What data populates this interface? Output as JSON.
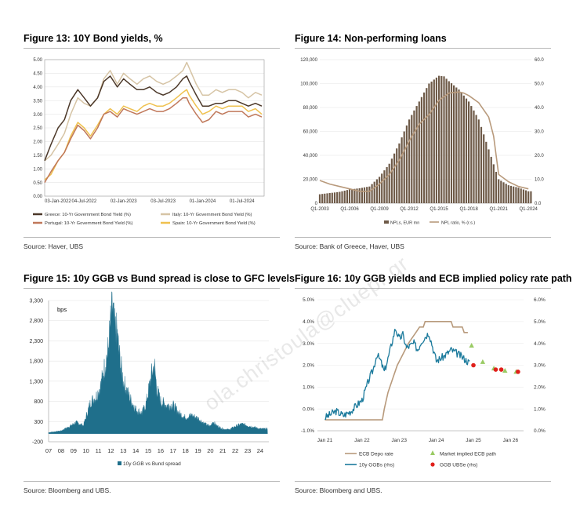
{
  "watermark": "ola.christoula@cluepr.gr",
  "colors": {
    "greece": "#4b3728",
    "italy": "#d6c4a5",
    "portugal": "#c0785a",
    "spain": "#efc14f",
    "npl_bar": "#6e5a48",
    "npl_line": "#b89a7c",
    "spread": "#1f6f8b",
    "ecb_depo": "#b89a7c",
    "ggb": "#1b7a9c",
    "market_implied": "#9acb64",
    "ubse": "#e0201b"
  },
  "chart_data": [
    {
      "id": "fig13",
      "type": "line",
      "title": "Figure 13: 10Y Bond yields, %",
      "source": "Source: Haver, UBS",
      "ylim": [
        0,
        5
      ],
      "grid": true,
      "legend_position": "bottom",
      "y_ticks": [
        "0.00",
        "0.50",
        "1.00",
        "1.50",
        "2.00",
        "2.50",
        "3.00",
        "3.50",
        "4.00",
        "4.50",
        "5.00"
      ],
      "x_ticks": [
        "03-Jan-2022",
        "04-Jul-2022",
        "02-Jan-2023",
        "03-Jul-2023",
        "01-Jan-2024",
        "01-Jul-2024"
      ],
      "x_tick_pos": [
        0,
        0.5,
        1.0,
        1.5,
        2.0,
        2.5
      ],
      "x_range": [
        0,
        2.78
      ],
      "series": [
        {
          "name": "Italy: 10-Yr Government Bond Yield (%)",
          "key": "italy",
          "x": [
            0,
            0.08,
            0.17,
            0.25,
            0.33,
            0.42,
            0.5,
            0.58,
            0.67,
            0.75,
            0.83,
            0.92,
            1.0,
            1.08,
            1.17,
            1.25,
            1.33,
            1.42,
            1.5,
            1.58,
            1.67,
            1.75,
            1.8,
            1.83,
            1.92,
            2.0,
            2.08,
            2.17,
            2.25,
            2.33,
            2.42,
            2.5,
            2.58,
            2.67,
            2.75
          ],
          "values": [
            1.3,
            1.5,
            1.9,
            2.3,
            3.0,
            3.6,
            3.4,
            3.3,
            3.6,
            4.3,
            4.6,
            4.1,
            4.5,
            4.3,
            4.1,
            4.3,
            4.4,
            4.2,
            4.1,
            4.2,
            4.4,
            4.6,
            4.9,
            4.7,
            4.1,
            3.7,
            3.7,
            3.9,
            3.8,
            3.9,
            3.9,
            3.8,
            3.6,
            3.8,
            3.7
          ]
        },
        {
          "name": "Greece: 10-Yr Government Bond Yield (%)",
          "key": "greece",
          "x": [
            0,
            0.08,
            0.17,
            0.25,
            0.33,
            0.42,
            0.5,
            0.58,
            0.67,
            0.75,
            0.83,
            0.92,
            1.0,
            1.08,
            1.17,
            1.25,
            1.33,
            1.42,
            1.5,
            1.58,
            1.67,
            1.75,
            1.8,
            1.83,
            1.92,
            2.0,
            2.08,
            2.17,
            2.25,
            2.33,
            2.42,
            2.5,
            2.58,
            2.67,
            2.75
          ],
          "values": [
            1.3,
            1.9,
            2.5,
            2.8,
            3.5,
            3.9,
            3.6,
            3.3,
            3.6,
            4.2,
            4.4,
            4.0,
            4.3,
            4.1,
            3.9,
            3.9,
            4.0,
            3.8,
            3.7,
            3.8,
            4.0,
            4.3,
            4.4,
            4.2,
            3.7,
            3.3,
            3.3,
            3.4,
            3.4,
            3.5,
            3.5,
            3.4,
            3.3,
            3.4,
            3.3
          ]
        },
        {
          "name": "Spain: 10-Yr Government Bond Yield (%)",
          "key": "spain",
          "x": [
            0,
            0.08,
            0.17,
            0.25,
            0.33,
            0.42,
            0.5,
            0.58,
            0.67,
            0.75,
            0.83,
            0.92,
            1.0,
            1.08,
            1.17,
            1.25,
            1.33,
            1.42,
            1.5,
            1.58,
            1.67,
            1.75,
            1.8,
            1.83,
            1.92,
            2.0,
            2.08,
            2.17,
            2.25,
            2.33,
            2.42,
            2.5,
            2.58,
            2.67,
            2.75
          ],
          "values": [
            0.6,
            0.8,
            1.3,
            1.6,
            2.2,
            2.7,
            2.5,
            2.2,
            2.6,
            3.0,
            3.2,
            3.0,
            3.3,
            3.2,
            3.1,
            3.3,
            3.4,
            3.3,
            3.3,
            3.4,
            3.6,
            3.8,
            3.9,
            3.7,
            3.3,
            3.0,
            3.1,
            3.3,
            3.2,
            3.3,
            3.3,
            3.3,
            3.1,
            3.2,
            3.0
          ]
        },
        {
          "name": "Portugal: 10-Yr Government Bond Yield (%)",
          "key": "portugal",
          "x": [
            0,
            0.08,
            0.17,
            0.25,
            0.33,
            0.42,
            0.5,
            0.58,
            0.67,
            0.75,
            0.83,
            0.92,
            1.0,
            1.08,
            1.17,
            1.25,
            1.33,
            1.42,
            1.5,
            1.58,
            1.67,
            1.75,
            1.8,
            1.83,
            1.92,
            2.0,
            2.08,
            2.17,
            2.25,
            2.33,
            2.42,
            2.5,
            2.58,
            2.67,
            2.75
          ],
          "values": [
            0.5,
            0.9,
            1.3,
            1.6,
            2.1,
            2.6,
            2.4,
            2.1,
            2.5,
            3.0,
            3.1,
            2.9,
            3.2,
            3.1,
            3.0,
            3.1,
            3.2,
            3.1,
            3.1,
            3.2,
            3.4,
            3.6,
            3.6,
            3.4,
            3.0,
            2.7,
            2.8,
            3.1,
            3.0,
            3.1,
            3.1,
            3.1,
            2.9,
            3.0,
            2.9
          ]
        }
      ]
    },
    {
      "id": "fig14",
      "type": "bar",
      "title": "Figure 14: Non-performing loans",
      "source": "Source: Bank of Greece, Haver, UBS",
      "ylim": [
        0,
        120000
      ],
      "y2lim": [
        0,
        60
      ],
      "y_ticks": [
        "0",
        "20,000",
        "40,000",
        "60,000",
        "80,000",
        "100,000",
        "120,000"
      ],
      "y2_ticks": [
        "0.0",
        "10.0",
        "20.0",
        "30.0",
        "40.0",
        "50.0",
        "60.0"
      ],
      "x_ticks": [
        "Q1-2003",
        "Q1-2006",
        "Q1-2009",
        "Q1-2012",
        "Q1-2015",
        "Q1-2018",
        "Q1-2021",
        "Q1-2024"
      ],
      "x_tick_years": [
        2003,
        2006,
        2009,
        2012,
        2015,
        2018,
        2021,
        2024
      ],
      "x_range": [
        2003,
        2024.3
      ],
      "series": [
        {
          "name": "NPLs, EUR mn",
          "type": "bar",
          "key": "npl_bar",
          "x": [
            2003,
            2004,
            2005,
            2006,
            2007,
            2008,
            2009,
            2010,
            2011,
            2012,
            2013,
            2014,
            2014.75,
            2015,
            2015.5,
            2016,
            2017,
            2018,
            2019,
            2020,
            2021,
            2022,
            2023,
            2024
          ],
          "values": [
            7500,
            8500,
            9500,
            11500,
            12500,
            14000,
            22000,
            33000,
            50000,
            70000,
            85000,
            100000,
            105000,
            106500,
            106000,
            102000,
            95000,
            85000,
            70000,
            45000,
            20000,
            15000,
            13000,
            10000
          ]
        },
        {
          "name": "NPL ratio, % (r.s.)",
          "type": "line",
          "axis": "right",
          "key": "npl_line",
          "x": [
            2003,
            2004,
            2005,
            2006,
            2007,
            2008,
            2009,
            2010,
            2011,
            2012,
            2013,
            2014,
            2015,
            2016,
            2017,
            2017.5,
            2018,
            2019,
            2020,
            2020.5,
            2021,
            2022,
            2023,
            2024
          ],
          "values": [
            9.5,
            8,
            7,
            6,
            5,
            5,
            8,
            12,
            18,
            26,
            33,
            37,
            43,
            46,
            46.5,
            46,
            45,
            42,
            36,
            28,
            12,
            9,
            7,
            6
          ]
        }
      ]
    },
    {
      "id": "fig15",
      "type": "area",
      "title": "Figure 15: 10y GGB vs Bund spread is close to GFC levels",
      "source": "Source: Bloomberg and UBS.",
      "unit_label": "bps",
      "ylim": [
        -200,
        3300
      ],
      "y_ticks": [
        "-200",
        "300",
        "800",
        "1,300",
        "1,800",
        "2,300",
        "2,800",
        "3,300"
      ],
      "x_ticks": [
        "07",
        "08",
        "09",
        "10",
        "11",
        "12",
        "13",
        "14",
        "15",
        "16",
        "17",
        "18",
        "19",
        "20",
        "21",
        "22",
        "23",
        "24"
      ],
      "x_range": [
        2007,
        2024.7
      ],
      "series": [
        {
          "name": "10y GGB vs Bund spread",
          "key": "spread",
          "x": [
            2007,
            2008,
            2008.8,
            2009.2,
            2009.8,
            2010.2,
            2010.4,
            2010.8,
            2011.2,
            2011.6,
            2011.8,
            2012.0,
            2012.15,
            2012.3,
            2012.5,
            2012.7,
            2013.0,
            2013.5,
            2014.0,
            2014.5,
            2014.8,
            2015.0,
            2015.3,
            2015.5,
            2015.7,
            2016.0,
            2016.5,
            2017.0,
            2017.5,
            2018.0,
            2018.5,
            2019.0,
            2019.5,
            2020.0,
            2020.2,
            2020.5,
            2021.0,
            2021.5,
            2022.0,
            2022.5,
            2023.0,
            2023.5,
            2024.0,
            2024.6
          ],
          "values": [
            30,
            70,
            200,
            280,
            200,
            600,
            800,
            900,
            1200,
            1800,
            2100,
            2800,
            3150,
            2600,
            2500,
            1900,
            1300,
            900,
            600,
            500,
            700,
            1000,
            1500,
            1700,
            1100,
            800,
            700,
            700,
            500,
            400,
            450,
            380,
            250,
            180,
            300,
            200,
            120,
            100,
            180,
            240,
            200,
            160,
            120,
            120
          ]
        }
      ]
    },
    {
      "id": "fig16",
      "type": "line",
      "title": "Figure 16: 10y GGB yields and ECB implied policy rate path",
      "source": "Source: Bloomberg and UBS.",
      "ylim": [
        -1,
        5
      ],
      "y2lim": [
        0,
        6
      ],
      "y_ticks": [
        "-1.0%",
        "0.0%",
        "1.0%",
        "2.0%",
        "3.0%",
        "4.0%",
        "5.0%"
      ],
      "y2_ticks": [
        "0.0%",
        "1.0%",
        "2.0%",
        "3.0%",
        "4.0%",
        "5.0%",
        "6.0%"
      ],
      "x_ticks": [
        "Jan 21",
        "Jan 22",
        "Jan 23",
        "Jan 24",
        "Jan 25",
        "Jan 26"
      ],
      "x_tick_years": [
        2021,
        2022,
        2023,
        2024,
        2025,
        2026
      ],
      "x_range": [
        2020.8,
        2026.35
      ],
      "series": [
        {
          "name": "ECB Depo rate",
          "key": "ecb_depo",
          "x": [
            2021,
            2022.55,
            2022.6,
            2022.7,
            2022.85,
            2022.95,
            2023.1,
            2023.25,
            2023.35,
            2023.45,
            2023.55,
            2023.65,
            2023.7,
            2024.4,
            2024.45,
            2024.7,
            2024.75,
            2024.85
          ],
          "values": [
            -0.5,
            -0.5,
            0.0,
            0.75,
            1.5,
            2.0,
            2.5,
            3.0,
            3.25,
            3.5,
            3.75,
            3.75,
            4.0,
            4.0,
            3.75,
            3.75,
            3.5,
            3.5
          ]
        },
        {
          "name": "10y GGBs (rhs)",
          "key": "ggb",
          "x": [
            2021.0,
            2021.3,
            2021.5,
            2021.7,
            2022.0,
            2022.1,
            2022.2,
            2022.3,
            2022.4,
            2022.5,
            2022.6,
            2022.7,
            2022.8,
            2022.9,
            2023.0,
            2023.1,
            2023.2,
            2023.4,
            2023.5,
            2023.6,
            2023.8,
            2024.0,
            2024.2,
            2024.4,
            2024.6,
            2024.9
          ],
          "values": [
            0.6,
            0.9,
            0.7,
            0.9,
            1.4,
            1.9,
            2.4,
            2.8,
            3.5,
            3.2,
            2.7,
            3.3,
            4.0,
            4.7,
            4.2,
            4.4,
            3.8,
            4.0,
            3.7,
            4.1,
            4.5,
            3.2,
            3.4,
            3.7,
            3.5,
            3.1
          ]
        },
        {
          "name": "Market implied ECB path",
          "key": "market_implied",
          "marker": "triangle",
          "x": [
            2024.95,
            2025.25,
            2025.55,
            2025.85,
            2026.15
          ],
          "values": [
            3.9,
            3.15,
            2.85,
            2.75,
            2.7
          ]
        },
        {
          "name": "GGB UBSe (rhs)",
          "key": "ubse",
          "marker": "dot",
          "x": [
            2025.0,
            2025.6,
            2025.75,
            2026.2
          ],
          "values": [
            3.0,
            2.8,
            2.8,
            2.7
          ]
        }
      ]
    }
  ]
}
